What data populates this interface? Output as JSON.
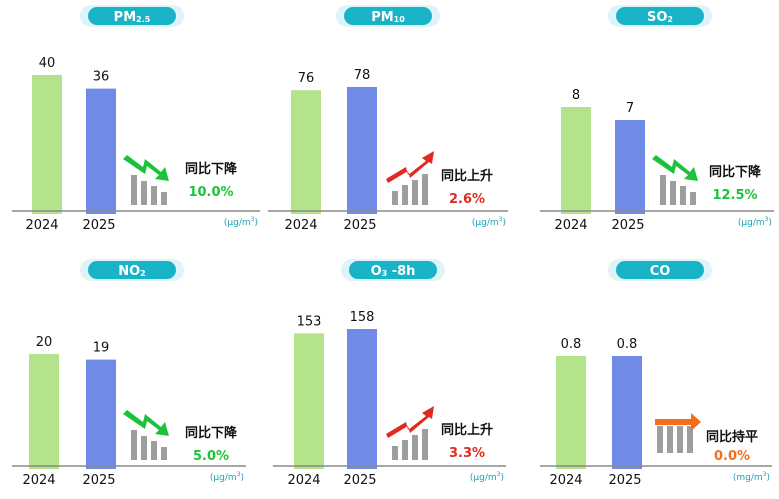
{
  "colors": {
    "bar_2024": "#b3e48c",
    "bar_2025": "#6f8be6",
    "down": "#1cc33a",
    "up": "#e02a20",
    "flat": "#f36e1c",
    "pill": "#19b3c8",
    "pill_glow": "#dff4f8",
    "mini_bars": "#9e9e9e"
  },
  "chart_data": [
    {
      "type": "bar",
      "title": "PM",
      "title_sub": "2.5",
      "categories": [
        "2024",
        "2025"
      ],
      "values": [
        40,
        36
      ],
      "value_labels": [
        "40",
        "36"
      ],
      "trend_icon": "down-arrow-icon",
      "trend_label": "同比下降",
      "change": "10.0%",
      "unit": "(μg/m",
      "unit_sup": "3",
      "unit_end": ")"
    },
    {
      "type": "bar",
      "title": "PM",
      "title_sub": "10",
      "categories": [
        "2024",
        "2025"
      ],
      "values": [
        76,
        78
      ],
      "value_labels": [
        "76",
        "78"
      ],
      "trend_icon": "up-arrow-icon",
      "trend_label": "同比上升",
      "change": "2.6%",
      "unit": "(μg/m",
      "unit_sup": "3",
      "unit_end": ")"
    },
    {
      "type": "bar",
      "title": "SO",
      "title_sub": "2",
      "categories": [
        "2024",
        "2025"
      ],
      "values": [
        8,
        7
      ],
      "value_labels": [
        "8",
        "7"
      ],
      "trend_icon": "down-arrow-icon",
      "trend_label": "同比下降",
      "change": "12.5%",
      "unit": "(μg/m",
      "unit_sup": "3",
      "unit_end": ")"
    },
    {
      "type": "bar",
      "title": "NO",
      "title_sub": "2",
      "categories": [
        "2024",
        "2025"
      ],
      "values": [
        20,
        19
      ],
      "value_labels": [
        "20",
        "19"
      ],
      "trend_icon": "down-arrow-icon",
      "trend_label": "同比下降",
      "change": "5.0%",
      "unit": "(μg/m",
      "unit_sup": "3",
      "unit_end": ")"
    },
    {
      "type": "bar",
      "title": "O",
      "title_sub": "3",
      "title_suffix": " -8h",
      "categories": [
        "2024",
        "2025"
      ],
      "values": [
        153,
        158
      ],
      "value_labels": [
        "153",
        "158"
      ],
      "trend_icon": "up-arrow-icon",
      "trend_label": "同比上升",
      "change": "3.3%",
      "unit": "(μg/m",
      "unit_sup": "3",
      "unit_end": ")"
    },
    {
      "type": "bar",
      "title": "CO",
      "categories": [
        "2024",
        "2025"
      ],
      "values": [
        0.8,
        0.8
      ],
      "value_labels": [
        "0.8",
        "0.8"
      ],
      "trend_icon": "flat-arrow-icon",
      "trend_label": "同比持平",
      "change": "0.0%",
      "unit": "(mg/m",
      "unit_sup": "3",
      "unit_end": ")"
    }
  ]
}
